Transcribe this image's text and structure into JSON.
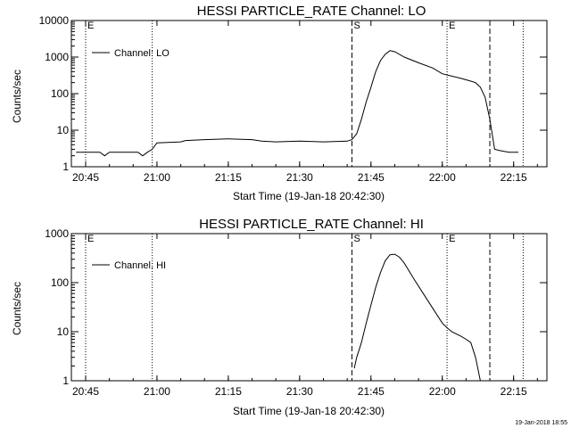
{
  "footer_text": "19-Jan-2018 18:55",
  "chart_data": [
    {
      "type": "line",
      "title": "HESSI PARTICLE_RATE Channel: LO",
      "xlabel": "Start Time (19-Jan-18 20:42:30)",
      "ylabel": "Counts/sec",
      "yscale": "log",
      "xlim": [
        "20:42",
        "22:22"
      ],
      "ylim": [
        1,
        10000
      ],
      "x_ticks": [
        "20:45",
        "21:00",
        "21:15",
        "21:30",
        "21:45",
        "22:00",
        "22:15"
      ],
      "y_ticks": [
        "1",
        "10",
        "100",
        "1000",
        "10000"
      ],
      "legend": "top-left",
      "markers": [
        {
          "time": "20:45",
          "label": "E",
          "style": "dotted"
        },
        {
          "time": "20:59",
          "label": "",
          "style": "dotted"
        },
        {
          "time": "21:41",
          "label": "S",
          "style": "dashed"
        },
        {
          "time": "22:01",
          "label": "E",
          "style": "dotted"
        },
        {
          "time": "22:10",
          "label": "",
          "style": "dashed"
        },
        {
          "time": "22:17",
          "label": "",
          "style": "dotted"
        }
      ],
      "series": [
        {
          "name": "Channel: LO",
          "x": [
            "20:43",
            "20:48",
            "20:49",
            "20:50",
            "20:53",
            "20:56",
            "20:57",
            "20:58",
            "20:59",
            "21:00",
            "21:05",
            "21:06",
            "21:10",
            "21:15",
            "21:20",
            "21:22",
            "21:25",
            "21:30",
            "21:35",
            "21:40",
            "21:41",
            "21:42",
            "21:43",
            "21:44",
            "21:45",
            "21:46",
            "21:47",
            "21:48",
            "21:49",
            "21:50",
            "21:52",
            "21:55",
            "21:58",
            "22:00",
            "22:02",
            "22:04",
            "22:06",
            "22:07",
            "22:08",
            "22:09",
            "22:10",
            "22:11",
            "22:12",
            "22:14",
            "22:16"
          ],
          "y": [
            2.5,
            2.5,
            2.0,
            2.5,
            2.5,
            2.5,
            2.0,
            2.5,
            3.0,
            4.5,
            4.8,
            5.2,
            5.5,
            5.8,
            5.5,
            5.0,
            4.8,
            5.0,
            4.8,
            5.0,
            5.5,
            8,
            20,
            60,
            150,
            400,
            800,
            1200,
            1500,
            1400,
            1000,
            700,
            500,
            350,
            300,
            260,
            220,
            200,
            150,
            80,
            20,
            3,
            2.8,
            2.5,
            2.5
          ]
        }
      ]
    },
    {
      "type": "line",
      "title": "HESSI PARTICLE_RATE Channel: HI",
      "xlabel": "Start Time (19-Jan-18 20:42:30)",
      "ylabel": "Counts/sec",
      "yscale": "log",
      "xlim": [
        "20:42",
        "22:22"
      ],
      "ylim": [
        1,
        1000
      ],
      "x_ticks": [
        "20:45",
        "21:00",
        "21:15",
        "21:30",
        "21:45",
        "22:00",
        "22:15"
      ],
      "y_ticks": [
        "1",
        "10",
        "100",
        "1000"
      ],
      "legend": "top-left",
      "markers": [
        {
          "time": "20:45",
          "label": "E",
          "style": "dotted"
        },
        {
          "time": "20:59",
          "label": "",
          "style": "dotted"
        },
        {
          "time": "21:41",
          "label": "S",
          "style": "dashed"
        },
        {
          "time": "22:01",
          "label": "E",
          "style": "dotted"
        },
        {
          "time": "22:10",
          "label": "",
          "style": "dashed"
        },
        {
          "time": "22:17",
          "label": "",
          "style": "dotted"
        }
      ],
      "series": [
        {
          "name": "Channel: HI",
          "x": [
            "21:41.5",
            "21:42",
            "21:43",
            "21:44",
            "21:45",
            "21:46",
            "21:47",
            "21:48",
            "21:49",
            "21:50",
            "21:51",
            "21:52",
            "21:54",
            "21:56",
            "21:58",
            "22:00",
            "22:01",
            "22:02",
            "22:04",
            "22:05",
            "22:06",
            "22:07",
            "22:08"
          ],
          "y": [
            1.8,
            3,
            6,
            15,
            35,
            80,
            160,
            280,
            370,
            380,
            330,
            250,
            120,
            60,
            30,
            15,
            12,
            10,
            8,
            7,
            6,
            3,
            1
          ]
        }
      ]
    }
  ]
}
